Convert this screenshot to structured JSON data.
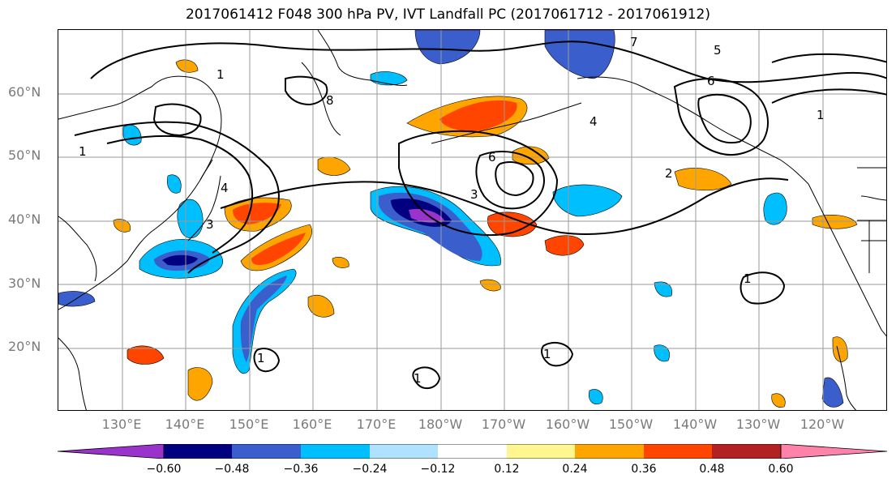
{
  "title": "2017061412 F048 300 hPa PV, IVT Landfall PC (2017061712 - 2017061912)",
  "axes": {
    "lat_labels": [
      "60°N",
      "50°N",
      "40°N",
      "30°N",
      "20°N"
    ],
    "lon_labels": [
      "130°E",
      "140°E",
      "150°E",
      "160°E",
      "170°E",
      "180°W",
      "170°W",
      "160°W",
      "150°W",
      "140°W",
      "130°W",
      "120°W"
    ],
    "grid": true
  },
  "colorbar": {
    "colors": [
      "#9933cc",
      "#000080",
      "#3a5fcd",
      "#00bfff",
      "#b0e2ff",
      "#ffffff",
      "#fff68f",
      "#ffa500",
      "#ff4500",
      "#b22222",
      "#ff82ab"
    ],
    "tick_labels": [
      "−0.60",
      "−0.48",
      "−0.36",
      "−0.24",
      "−0.12",
      "0.12",
      "0.24",
      "0.36",
      "0.48",
      "0.60"
    ],
    "extend": "both"
  },
  "contour_labels": [
    "3",
    "4",
    "1",
    "2",
    "6",
    "8",
    "5",
    "7"
  ]
}
